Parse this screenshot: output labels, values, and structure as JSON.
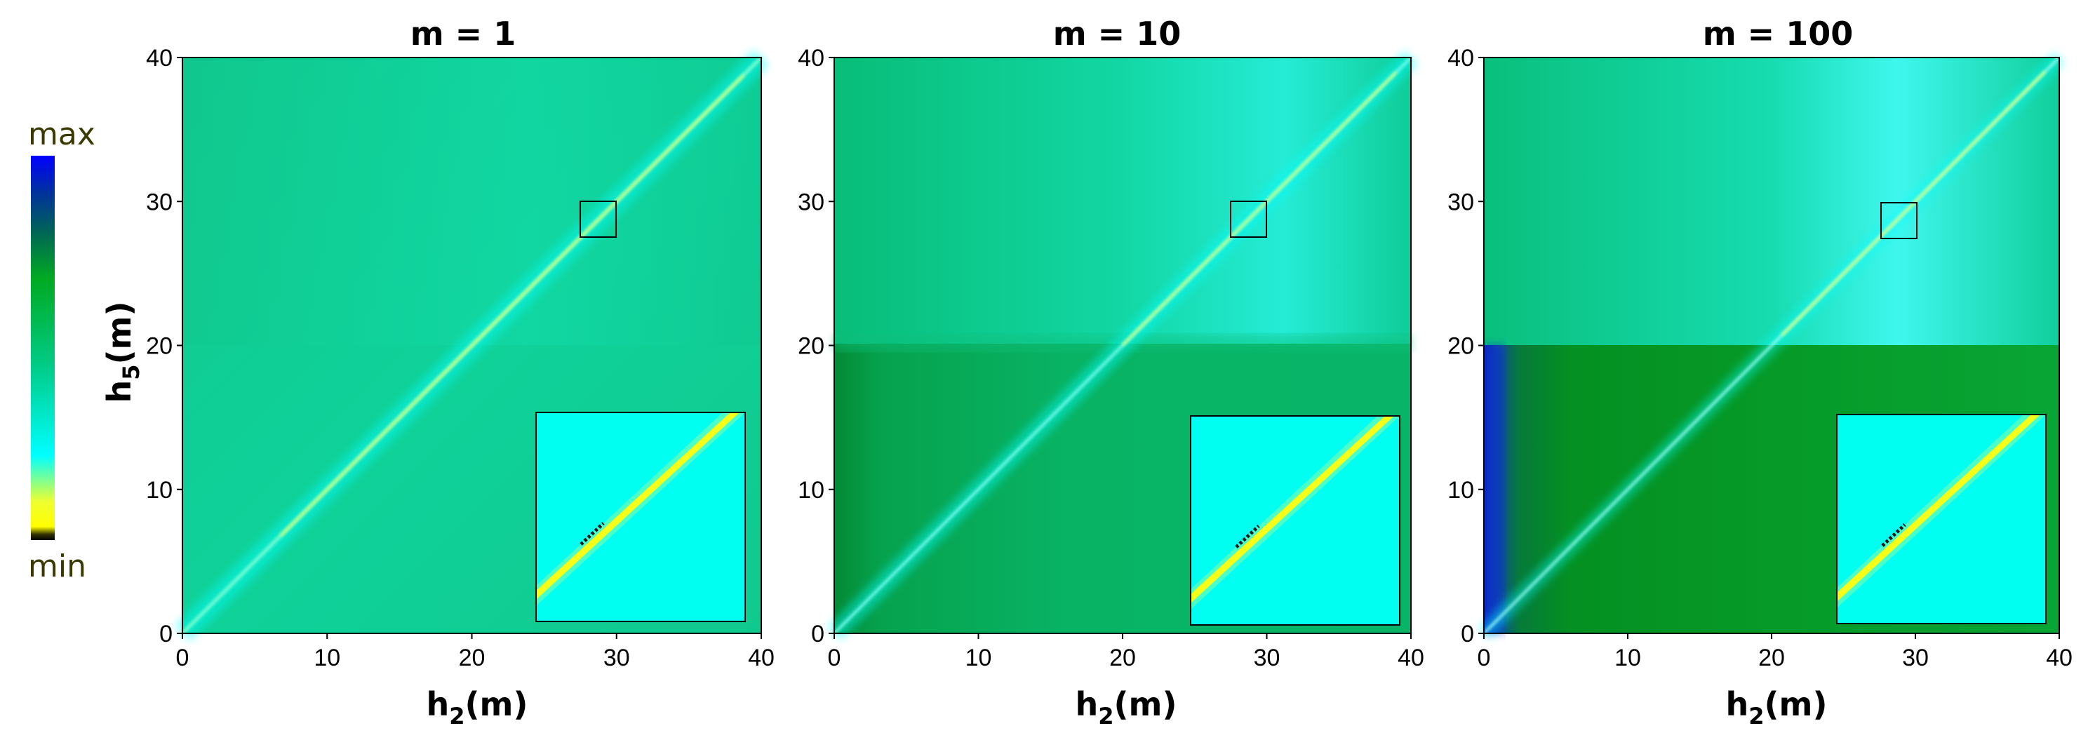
{
  "colors": {
    "colormap": [
      "#000000",
      "#ffff00",
      "#00ffff",
      "#00cc77",
      "#008800",
      "#0000ff"
    ],
    "label_color": "#3a3a00",
    "diagonal_ridge": "#ffff00"
  },
  "colorbar": {
    "max_label": "max",
    "min_label": "min"
  },
  "ylabel": {
    "main": "h",
    "sub": "5",
    "unit": "(m)"
  },
  "chart_data": [
    {
      "type": "heatmap",
      "title": "m = 1",
      "xlabel": {
        "main": "h",
        "sub": "2",
        "unit": "(m)"
      },
      "xlim": [
        0,
        40
      ],
      "ylim": [
        0,
        40
      ],
      "xticks": [
        "0",
        "10",
        "20",
        "30",
        "40"
      ],
      "yticks": [
        "0",
        "10",
        "20",
        "30",
        "40"
      ],
      "regions": {
        "lower_half": "uniform green",
        "upper_half": "uniform green"
      },
      "diagonal": "h5 = h2",
      "highlight_box": {
        "x": [
          27.5,
          30
        ],
        "y": [
          27.5,
          30
        ]
      },
      "inset": "zoom of highlighted box around the diagonal"
    },
    {
      "type": "heatmap",
      "title": "m = 10",
      "xlabel": {
        "main": "h",
        "sub": "2",
        "unit": "(m)"
      },
      "xlim": [
        0,
        40
      ],
      "ylim": [
        0,
        40
      ],
      "xticks": [
        "0",
        "10",
        "20",
        "30",
        "40"
      ],
      "yticks": [
        "0",
        "10",
        "20",
        "30",
        "40"
      ],
      "regions": {
        "lower_half": "darker green below h5 = 20",
        "upper_half": "green to cyan"
      },
      "diagonal": "h5 = h2",
      "highlight_box": {
        "x": [
          27.5,
          30
        ],
        "y": [
          27.5,
          30
        ]
      },
      "inset": "zoom of highlighted box around the diagonal"
    },
    {
      "type": "heatmap",
      "title": "m = 100",
      "xlabel": {
        "main": "h",
        "sub": "2",
        "unit": "(m)"
      },
      "xlim": [
        0,
        40
      ],
      "ylim": [
        0,
        40
      ],
      "xticks": [
        "0",
        "10",
        "20",
        "30",
        "40"
      ],
      "yticks": [
        "0",
        "10",
        "20",
        "30",
        "40"
      ],
      "regions": {
        "lower_half": "dark green below h5 = 20, blue near h2 = 0",
        "upper_half": "green to cyan"
      },
      "diagonal": "h5 = h2",
      "highlight_box": {
        "x": [
          27.5,
          30
        ],
        "y": [
          27.5,
          30
        ]
      },
      "inset": "zoom of highlighted box around the diagonal"
    }
  ]
}
